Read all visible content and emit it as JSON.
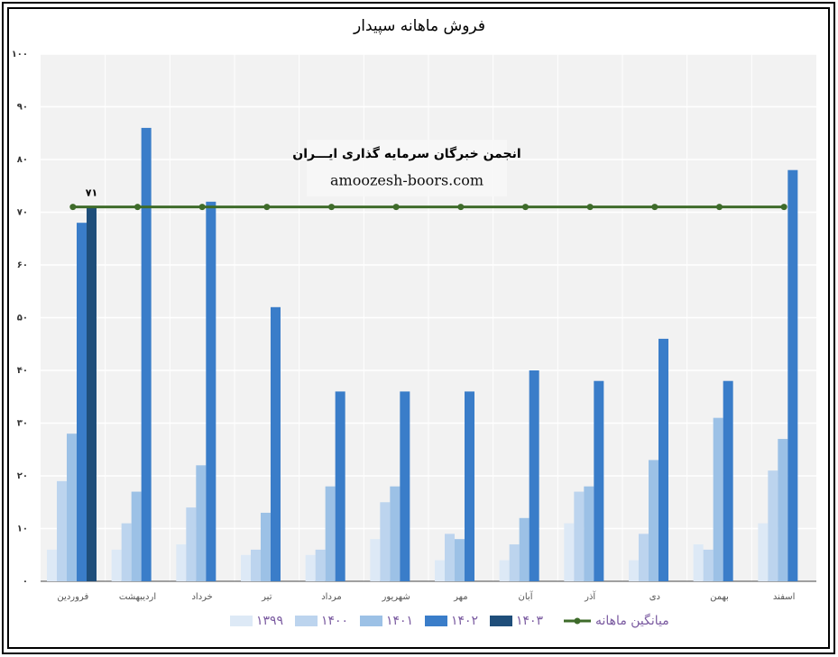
{
  "chart_data": {
    "type": "bar",
    "title": "فروش ماهانه سپیدار",
    "annotations": [
      "انجمن خبرگان سرمایه گذاری ایـــران",
      "amoozesh-boors.com"
    ],
    "categories": [
      "فروردین",
      "اردیبهشت",
      "خرداد",
      "تیر",
      "مرداد",
      "شهریور",
      "مهر",
      "آبان",
      "آذر",
      "دی",
      "بهمن",
      "اسفند"
    ],
    "series": [
      {
        "name": "۱۳۹۹",
        "color": "#dde9f6",
        "values": [
          6,
          6,
          7,
          5,
          5,
          8,
          4,
          4,
          11,
          4,
          7,
          11
        ]
      },
      {
        "name": "۱۴۰۰",
        "color": "#bcd4ee",
        "values": [
          19,
          11,
          14,
          6,
          6,
          15,
          9,
          7,
          17,
          9,
          6,
          21
        ]
      },
      {
        "name": "۱۴۰۱",
        "color": "#9cc1e6",
        "values": [
          28,
          17,
          22,
          13,
          18,
          18,
          8,
          12,
          18,
          23,
          31,
          27
        ]
      },
      {
        "name": "۱۴۰۲",
        "color": "#3a7dc9",
        "values": [
          68,
          86,
          72,
          52,
          36,
          36,
          36,
          40,
          38,
          46,
          38,
          78
        ]
      },
      {
        "name": "۱۴۰۳",
        "color": "#1f4e7a",
        "values": [
          71,
          null,
          null,
          null,
          null,
          null,
          null,
          null,
          null,
          null,
          null,
          null
        ],
        "value_labels": [
          "۷۱",
          null,
          null,
          null,
          null,
          null,
          null,
          null,
          null,
          null,
          null,
          null
        ]
      }
    ],
    "line_series": {
      "name": "میانگین ماهانه",
      "color": "#3e6b2a",
      "values": [
        71,
        71,
        71,
        71,
        71,
        71,
        71,
        71,
        71,
        71,
        71,
        71
      ]
    },
    "ylim": [
      0,
      100
    ],
    "yticks": [
      {
        "value": 0,
        "label": "۰"
      },
      {
        "value": 10,
        "label": "۱۰"
      },
      {
        "value": 20,
        "label": "۲۰"
      },
      {
        "value": 30,
        "label": "۳۰"
      },
      {
        "value": 40,
        "label": "۴۰"
      },
      {
        "value": 50,
        "label": "۵۰"
      },
      {
        "value": 60,
        "label": "۶۰"
      },
      {
        "value": 70,
        "label": "۷۰"
      },
      {
        "value": 80,
        "label": "۸۰"
      },
      {
        "value": 90,
        "label": "۹۰"
      },
      {
        "value": 100,
        "label": "۱۰۰"
      }
    ],
    "grid": true
  }
}
